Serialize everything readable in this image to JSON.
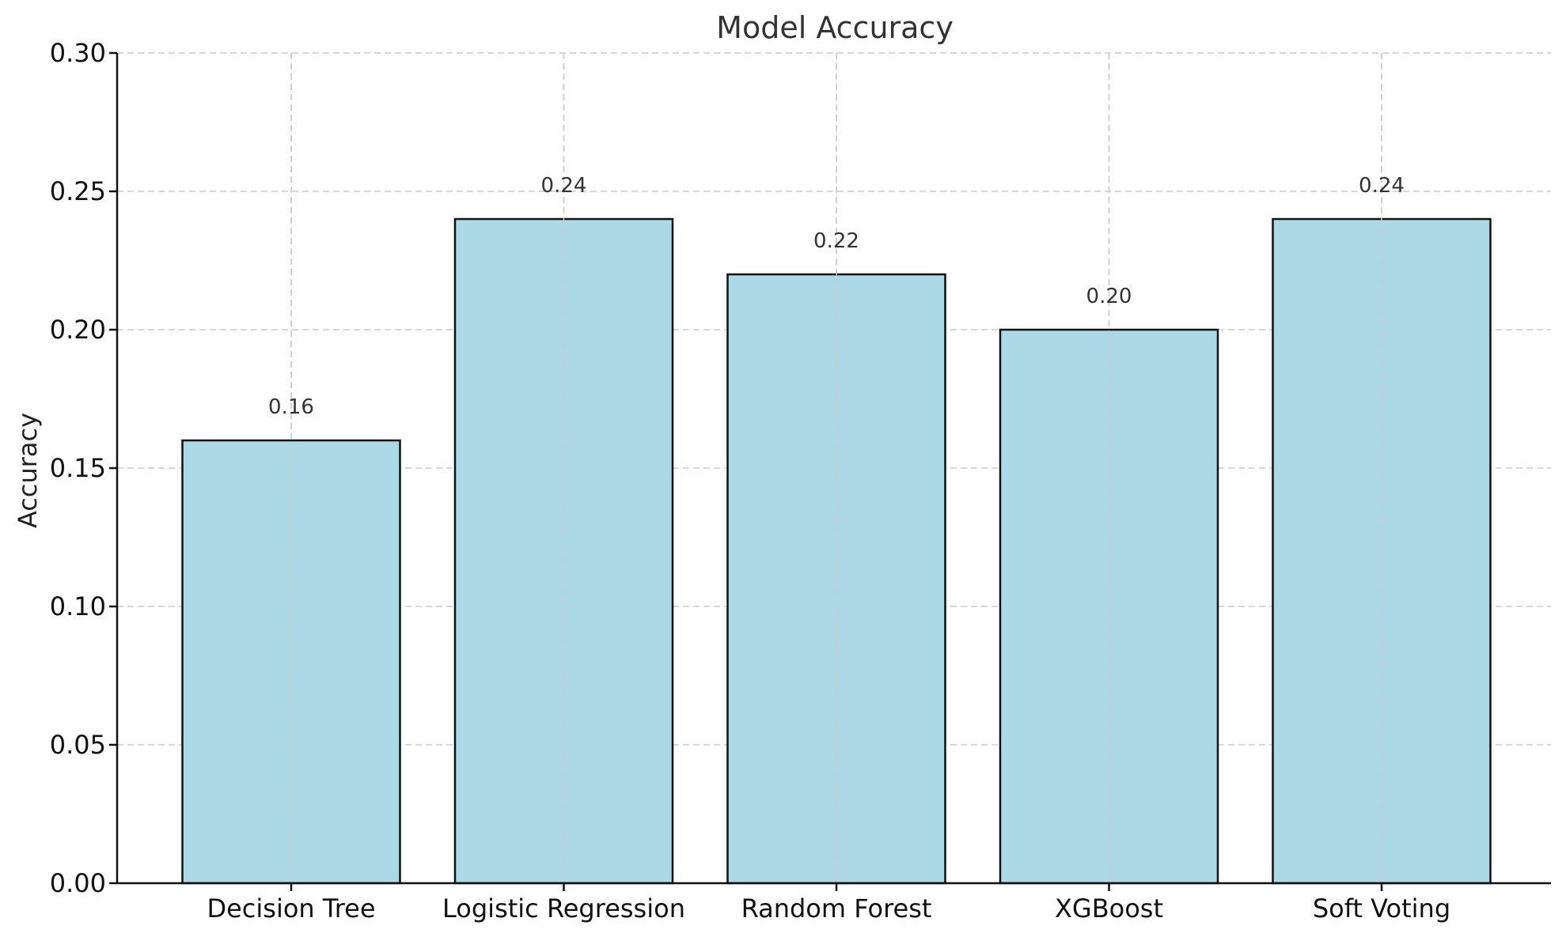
{
  "chart_data": {
    "type": "bar",
    "title": "Model Accuracy",
    "xlabel": "",
    "ylabel": "Accuracy",
    "categories": [
      "Decision Tree",
      "Logistic Regression",
      "Random Forest",
      "XGBoost",
      "Soft Voting"
    ],
    "values": [
      0.16,
      0.24,
      0.22,
      0.2,
      0.24
    ],
    "value_labels": [
      "0.16",
      "0.24",
      "0.22",
      "0.20",
      "0.24"
    ],
    "ylim": [
      0,
      0.3
    ],
    "yticks": [
      0.0,
      0.05,
      0.1,
      0.15,
      0.2,
      0.25,
      0.3
    ],
    "ytick_labels": [
      "0.00",
      "0.05",
      "0.10",
      "0.15",
      "0.20",
      "0.25",
      "0.30"
    ],
    "grid": true,
    "bar_color": "#add8e6",
    "bar_edge_color": "#111111"
  }
}
